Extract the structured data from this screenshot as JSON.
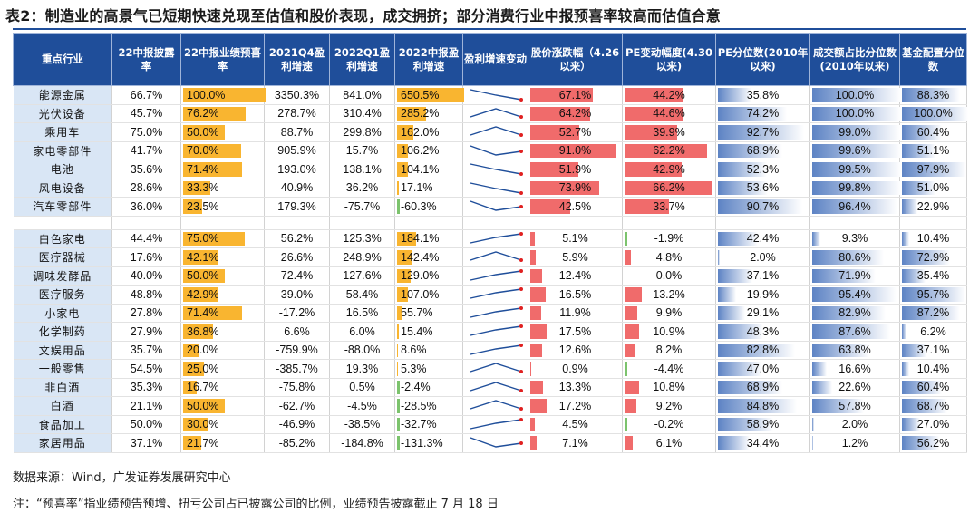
{
  "title": "表2：制造业的高景气已短期快速兑现至估值和股价表现，成交拥挤；部分消费行业中报预喜率较高而估值合意",
  "headers": [
    "重点行业",
    "22中报披露率",
    "22中报业绩预喜率",
    "2021Q4盈利增速",
    "2022Q1盈利增速",
    "2022中报盈利增速",
    "盈利增速变动",
    "股价涨跌幅（4.26以来）",
    "PE变动幅度(4.30以来)",
    "PE分位数(2010年以来)",
    "成交额占比分位数(2010年以来)",
    "基金配置分位数"
  ],
  "group1": [
    {
      "name": "能源金属",
      "disc": "66.7%",
      "rate": "100.0%",
      "q4": "3350.3%",
      "q1": "841.0%",
      "h1": "650.5%",
      "trend": "down",
      "price": "67.1%",
      "pe": "44.2%",
      "pepct": "35.8%",
      "vol": "100.0%",
      "fund": "88.3%"
    },
    {
      "name": "光伏设备",
      "disc": "45.7%",
      "rate": "76.2%",
      "q4": "278.7%",
      "q1": "310.4%",
      "h1": "285.2%",
      "trend": "peak",
      "price": "64.2%",
      "pe": "44.6%",
      "pepct": "74.2%",
      "vol": "100.0%",
      "fund": "100.0%"
    },
    {
      "name": "乘用车",
      "disc": "75.0%",
      "rate": "50.0%",
      "q4": "88.7%",
      "q1": "299.8%",
      "h1": "162.0%",
      "trend": "peak",
      "price": "52.7%",
      "pe": "39.9%",
      "pepct": "92.7%",
      "vol": "99.0%",
      "fund": "60.4%"
    },
    {
      "name": "家电零部件",
      "disc": "41.7%",
      "rate": "70.0%",
      "q4": "905.9%",
      "q1": "15.7%",
      "h1": "106.2%",
      "trend": "valley",
      "price": "91.0%",
      "pe": "62.2%",
      "pepct": "68.9%",
      "vol": "99.6%",
      "fund": "51.1%"
    },
    {
      "name": "电池",
      "disc": "35.6%",
      "rate": "71.4%",
      "q4": "193.0%",
      "q1": "138.1%",
      "h1": "104.1%",
      "trend": "down",
      "price": "51.9%",
      "pe": "42.9%",
      "pepct": "52.3%",
      "vol": "99.5%",
      "fund": "97.9%"
    },
    {
      "name": "风电设备",
      "disc": "28.6%",
      "rate": "33.3%",
      "q4": "40.9%",
      "q1": "36.2%",
      "h1": "17.1%",
      "trend": "down",
      "price": "73.9%",
      "pe": "66.2%",
      "pepct": "53.6%",
      "vol": "99.8%",
      "fund": "51.0%"
    },
    {
      "name": "汽车零部件",
      "disc": "36.0%",
      "rate": "23.5%",
      "q4": "179.3%",
      "q1": "-75.7%",
      "h1": "-60.3%",
      "trend": "valley",
      "price": "42.5%",
      "pe": "33.7%",
      "pepct": "90.7%",
      "vol": "96.4%",
      "fund": "22.9%"
    }
  ],
  "group2": [
    {
      "name": "白色家电",
      "disc": "44.4%",
      "rate": "75.0%",
      "q4": "56.2%",
      "q1": "125.3%",
      "h1": "184.1%",
      "trend": "up",
      "price": "5.1%",
      "pe": "-1.9%",
      "pepct": "42.4%",
      "vol": "9.3%",
      "fund": "10.4%"
    },
    {
      "name": "医疗器械",
      "disc": "17.6%",
      "rate": "42.1%",
      "q4": "26.6%",
      "q1": "248.9%",
      "h1": "142.4%",
      "trend": "peak",
      "price": "5.9%",
      "pe": "4.8%",
      "pepct": "2.0%",
      "vol": "80.6%",
      "fund": "72.9%"
    },
    {
      "name": "调味发酵品",
      "disc": "40.0%",
      "rate": "50.0%",
      "q4": "72.4%",
      "q1": "127.6%",
      "h1": "129.0%",
      "trend": "up",
      "price": "12.4%",
      "pe": "0.0%",
      "pepct": "37.1%",
      "vol": "71.9%",
      "fund": "35.4%"
    },
    {
      "name": "医疗服务",
      "disc": "48.8%",
      "rate": "42.9%",
      "q4": "39.0%",
      "q1": "58.4%",
      "h1": "107.0%",
      "trend": "up",
      "price": "16.5%",
      "pe": "13.2%",
      "pepct": "19.9%",
      "vol": "95.4%",
      "fund": "95.7%"
    },
    {
      "name": "小家电",
      "disc": "27.8%",
      "rate": "71.4%",
      "q4": "-17.2%",
      "q1": "16.5%",
      "h1": "55.7%",
      "trend": "up",
      "price": "11.9%",
      "pe": "9.9%",
      "pepct": "29.1%",
      "vol": "82.9%",
      "fund": "87.2%"
    },
    {
      "name": "化学制药",
      "disc": "27.9%",
      "rate": "36.8%",
      "q4": "6.6%",
      "q1": "6.0%",
      "h1": "15.4%",
      "trend": "up",
      "price": "17.5%",
      "pe": "10.9%",
      "pepct": "48.3%",
      "vol": "87.6%",
      "fund": "6.2%"
    },
    {
      "name": "文娱用品",
      "disc": "35.7%",
      "rate": "20.0%",
      "q4": "-759.9%",
      "q1": "-88.0%",
      "h1": "8.6%",
      "trend": "up",
      "price": "12.6%",
      "pe": "8.2%",
      "pepct": "82.8%",
      "vol": "63.8%",
      "fund": "37.1%"
    },
    {
      "name": "一般零售",
      "disc": "54.5%",
      "rate": "25.0%",
      "q4": "-385.7%",
      "q1": "19.3%",
      "h1": "5.3%",
      "trend": "peak",
      "price": "0.9%",
      "pe": "-4.4%",
      "pepct": "47.0%",
      "vol": "16.6%",
      "fund": "10.4%"
    },
    {
      "name": "非白酒",
      "disc": "35.3%",
      "rate": "16.7%",
      "q4": "-75.8%",
      "q1": "0.5%",
      "h1": "-2.4%",
      "trend": "peak",
      "price": "13.3%",
      "pe": "10.8%",
      "pepct": "68.9%",
      "vol": "22.6%",
      "fund": "60.4%"
    },
    {
      "name": "白酒",
      "disc": "21.1%",
      "rate": "50.0%",
      "q4": "-62.7%",
      "q1": "-4.5%",
      "h1": "-28.5%",
      "trend": "peak",
      "price": "17.2%",
      "pe": "9.2%",
      "pepct": "84.8%",
      "vol": "57.8%",
      "fund": "68.7%"
    },
    {
      "name": "食品加工",
      "disc": "50.0%",
      "rate": "30.0%",
      "q4": "-46.9%",
      "q1": "-38.5%",
      "h1": "-32.7%",
      "trend": "up",
      "price": "4.5%",
      "pe": "-0.2%",
      "pepct": "58.9%",
      "vol": "2.0%",
      "fund": "27.0%"
    },
    {
      "name": "家居用品",
      "disc": "37.1%",
      "rate": "21.7%",
      "q4": "-85.2%",
      "q1": "-184.8%",
      "h1": "-131.3%",
      "trend": "valley",
      "price": "7.1%",
      "pe": "6.1%",
      "pepct": "34.4%",
      "vol": "1.2%",
      "fund": "56.2%"
    }
  ],
  "colors": {
    "header": "#1f4e9a",
    "orange": "#f9b530",
    "red": "#f06b6b",
    "blue": "#5d83c4",
    "pos": "#f9b530",
    "neg": "#7cc36d",
    "spark": "#1f4e9a",
    "sparkDot": "#e02020"
  },
  "source": "数据来源：Wind，广发证券发展研究中心",
  "note": "注：“预喜率”指业绩预告预增、扭亏公司占已披露公司的比例，业绩预告披露截止 7 月 18 日"
}
